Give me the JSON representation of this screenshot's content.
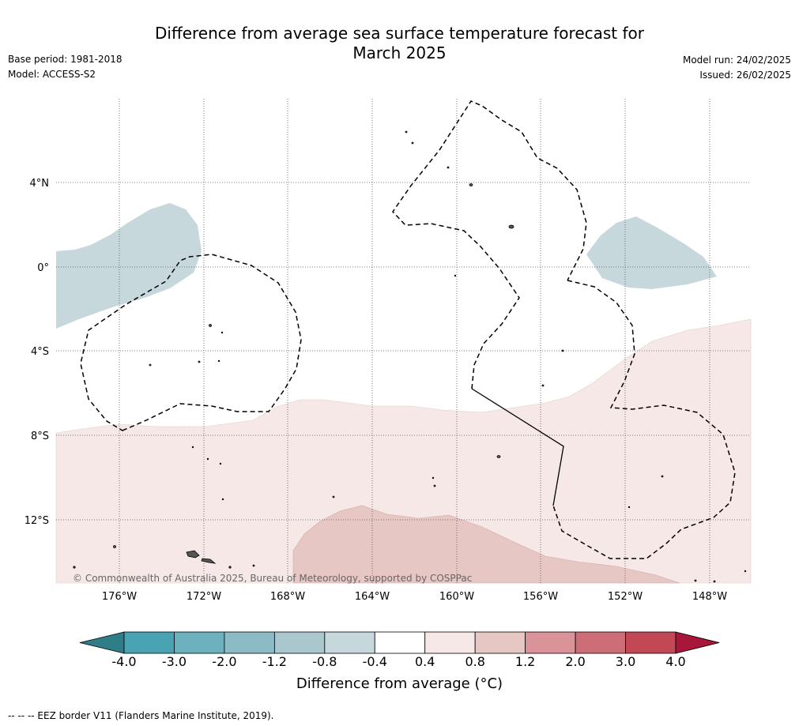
{
  "title": {
    "line1": "Difference from average sea surface temperature forecast for",
    "line2": "March 2025"
  },
  "meta_left": {
    "base_period": "Base period: 1981-2018",
    "model": "Model: ACCESS-S2"
  },
  "meta_right": {
    "model_run": "Model run: 24/02/2025",
    "issued": "Issued: 26/02/2025"
  },
  "map": {
    "lat_labels": [
      "4°N",
      "0°",
      "4°S",
      "8°S",
      "12°S"
    ],
    "lon_labels": [
      "176°W",
      "172°W",
      "168°W",
      "164°W",
      "160°W",
      "156°W",
      "152°W",
      "148°W"
    ],
    "copyright": "© Commonwealth of Australia 2025, Bureau of Meteorology, supported by COSPPac"
  },
  "colorbar": {
    "ticks": [
      "-4.0",
      "-3.0",
      "-2.0",
      "-1.2",
      "-0.8",
      "-0.4",
      "0.4",
      "0.8",
      "1.2",
      "2.0",
      "3.0",
      "4.0"
    ],
    "colors": [
      "#4aa3b3",
      "#6cb1bd",
      "#8cbbc5",
      "#a9c7cd",
      "#c7d8dc",
      "#ffffff",
      "#f5e8e7",
      "#e7c7c3",
      "#d99399",
      "#cd6d78",
      "#c24856"
    ],
    "under_color": "#2f7d87",
    "over_color": "#a8163a",
    "title": "Difference from average (°C)"
  },
  "footnote": "--  --  -- EEZ border V11 (Flanders Marine Institute, 2019)."
}
